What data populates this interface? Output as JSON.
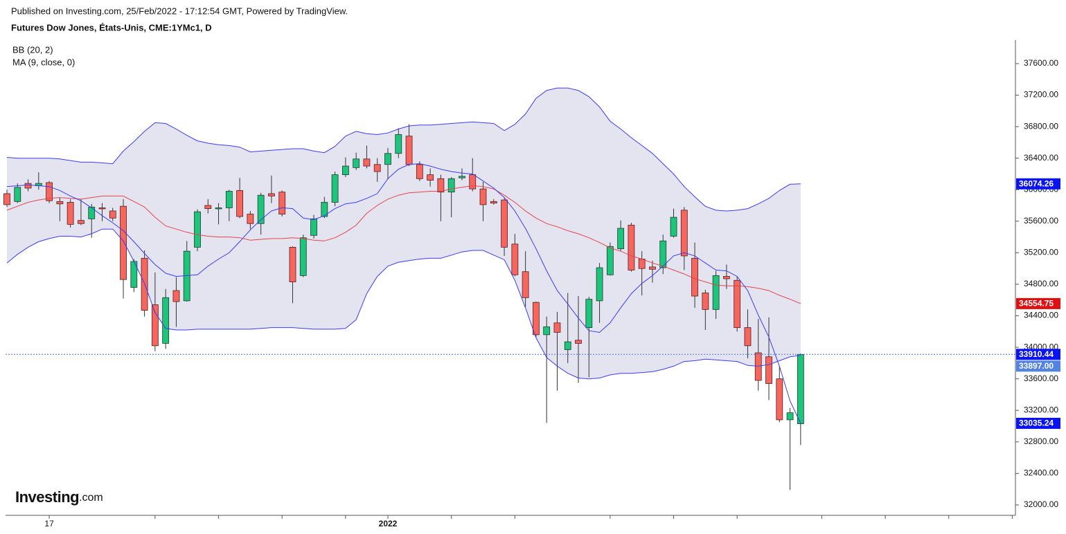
{
  "header": {
    "published": "Published on Investing.com, 25/Feb/2022 - 17:12:54 GMT, Powered by TradingView."
  },
  "logo": {
    "name": "Investing",
    "suffix": ".com"
  },
  "chart_data": {
    "type": "candlestick",
    "title": "Futures Dow Jones, États-Unis, CME:1YMc1, D",
    "legend": [
      "BB (20, 2)",
      "MA (9, close, 0)"
    ],
    "xlim": [
      -0.13,
      95.3
    ],
    "xticks": [
      {
        "value": 4,
        "label": "17"
      },
      {
        "value": 14,
        "label": null
      },
      {
        "value": 20,
        "label": null
      },
      {
        "value": 26,
        "label": null
      },
      {
        "value": 32,
        "label": null
      },
      {
        "value": 36,
        "label": "2022"
      },
      {
        "value": 42,
        "label": null
      },
      {
        "value": 48,
        "label": null
      },
      {
        "value": 57,
        "label": null
      },
      {
        "value": 63,
        "label": null
      },
      {
        "value": 69,
        "label": null
      },
      {
        "value": 77,
        "label": null
      },
      {
        "value": 83,
        "label": null
      },
      {
        "value": 89,
        "label": null
      },
      {
        "value": 95,
        "label": null
      }
    ],
    "ylim": [
      31868,
      37898
    ],
    "yticks": [
      {
        "value": 32000,
        "label": "32000.00"
      },
      {
        "value": 32400,
        "label": "32400.00"
      },
      {
        "value": 32800,
        "label": "32800.00"
      },
      {
        "value": 33200,
        "label": "33200.00"
      },
      {
        "value": 33600,
        "label": "33600.00"
      },
      {
        "value": 34000,
        "label": "34000.00"
      },
      {
        "value": 34400,
        "label": "34400.00"
      },
      {
        "value": 34800,
        "label": "34800.00"
      },
      {
        "value": 35200,
        "label": "35200.00"
      },
      {
        "value": 35600,
        "label": "35600.00"
      },
      {
        "value": 36000,
        "label": "36000.00"
      },
      {
        "value": 36400,
        "label": "36400.00"
      },
      {
        "value": 36800,
        "label": "36800.00"
      },
      {
        "value": 37200,
        "label": "37200.00"
      },
      {
        "value": 37600,
        "label": "37600.00"
      }
    ],
    "up_color": "#1fc47c",
    "down_color": "#f4665e",
    "band_fill": "#e4e4f1",
    "price_line_color": "#4a6fe0",
    "close_tag_color": "#0a14f0",
    "candles": {
      "open": [
        35950,
        35850,
        36080,
        36050,
        36090,
        35850,
        35840,
        35610,
        35630,
        35770,
        35730,
        35790,
        34760,
        35130,
        34540,
        34050,
        34720,
        34590,
        35270,
        35800,
        35760,
        35770,
        35990,
        35690,
        35570,
        35950,
        35970,
        35270,
        34910,
        35420,
        35660,
        35840,
        36190,
        36280,
        36390,
        36320,
        36320,
        36460,
        36680,
        36320,
        36190,
        36140,
        35970,
        36150,
        36190,
        36010,
        35850,
        35870,
        35310,
        34960,
        34570,
        34160,
        34310,
        33970,
        34090,
        34250,
        34590,
        34920,
        35250,
        35550,
        35120,
        35020,
        35010,
        35410,
        35740,
        35130,
        34690,
        34480,
        34900,
        34850,
        34250,
        33930,
        33880,
        33600,
        33080,
        33030
      ],
      "high": [
        36000,
        36080,
        36130,
        36220,
        36110,
        35900,
        35880,
        35880,
        35820,
        35830,
        35770,
        35880,
        35120,
        35230,
        34950,
        34740,
        34890,
        35350,
        35750,
        35880,
        35830,
        36000,
        36150,
        35730,
        35960,
        36180,
        35990,
        35280,
        35430,
        35680,
        35910,
        36230,
        36410,
        36470,
        36560,
        36400,
        36530,
        36780,
        36830,
        36360,
        36270,
        36190,
        36160,
        36270,
        36400,
        36100,
        35880,
        35890,
        35440,
        35220,
        34580,
        34390,
        34450,
        34690,
        34650,
        34640,
        35070,
        35330,
        35610,
        35580,
        35220,
        35100,
        35430,
        35760,
        35780,
        35330,
        34730,
        34970,
        35050,
        34900,
        34480,
        34360,
        34380,
        33760,
        33230,
        33920
      ],
      "low": [
        35780,
        35830,
        35980,
        36000,
        35830,
        35600,
        35520,
        35550,
        35390,
        35600,
        35600,
        34620,
        34700,
        34390,
        33950,
        33980,
        34260,
        34580,
        35220,
        35700,
        35560,
        35600,
        35640,
        35500,
        35430,
        35830,
        35660,
        34560,
        34890,
        35380,
        35640,
        35790,
        36160,
        36250,
        36270,
        36100,
        36130,
        36400,
        36300,
        36110,
        36040,
        35600,
        35650,
        36120,
        35980,
        35600,
        35810,
        35160,
        34900,
        34510,
        34130,
        33040,
        33450,
        33800,
        33550,
        33620,
        34310,
        34910,
        35220,
        34960,
        34660,
        34820,
        34930,
        35390,
        34980,
        34500,
        34220,
        34360,
        34740,
        34200,
        33860,
        33450,
        33330,
        33050,
        32190,
        32760
      ],
      "close": [
        35810,
        36030,
        36020,
        36080,
        35860,
        35820,
        35560,
        35570,
        35780,
        35760,
        35640,
        34860,
        35090,
        34470,
        34020,
        34630,
        34580,
        35220,
        35720,
        35760,
        35770,
        35980,
        35660,
        35570,
        35930,
        35920,
        35690,
        34830,
        35390,
        35630,
        35840,
        36190,
        36300,
        36390,
        36300,
        36230,
        36460,
        36700,
        36320,
        36140,
        36120,
        35970,
        36140,
        36170,
        36010,
        35810,
        35830,
        35270,
        34920,
        34630,
        34160,
        34260,
        34190,
        34070,
        34050,
        34610,
        35010,
        35280,
        35510,
        34980,
        35000,
        34990,
        35350,
        35650,
        35160,
        34650,
        34480,
        34910,
        34870,
        34250,
        34020,
        33580,
        33540,
        33080,
        33170,
        33910.44
      ]
    },
    "series": [
      {
        "color": "#3b3bf5",
        "tag_color": "#0a14f0",
        "values": [
          36410,
          36400,
          36400,
          36400,
          36400,
          36390,
          36370,
          36350,
          36350,
          36340,
          36330,
          36490,
          36610,
          36740,
          36850,
          36840,
          36770,
          36690,
          36620,
          36590,
          36570,
          36560,
          36540,
          36480,
          36490,
          36500,
          36510,
          36520,
          36520,
          36490,
          36470,
          36550,
          36680,
          36740,
          36710,
          36700,
          36720,
          36770,
          36810,
          36820,
          36820,
          36830,
          36840,
          36850,
          36860,
          36850,
          36840,
          36750,
          36830,
          36960,
          37160,
          37260,
          37290,
          37290,
          37260,
          37180,
          37050,
          36870,
          36770,
          36660,
          36560,
          36460,
          36330,
          36200,
          36040,
          35910,
          35790,
          35740,
          35730,
          35740,
          35760,
          35820,
          35890,
          35990,
          36070,
          36074.26
        ]
      },
      {
        "color": "#e8434a",
        "tag_color": "#e01010",
        "values": [
          35740,
          35790,
          35840,
          35870,
          35890,
          35900,
          35890,
          35880,
          35900,
          35920,
          35920,
          35920,
          35850,
          35780,
          35650,
          35540,
          35500,
          35460,
          35430,
          35410,
          35400,
          35400,
          35390,
          35360,
          35370,
          35380,
          35380,
          35390,
          35380,
          35360,
          35350,
          35390,
          35460,
          35550,
          35700,
          35800,
          35880,
          35930,
          35960,
          35970,
          35980,
          35980,
          36010,
          36030,
          36050,
          36040,
          36010,
          35930,
          35840,
          35730,
          35640,
          35570,
          35530,
          35480,
          35440,
          35390,
          35330,
          35260,
          35220,
          35160,
          35120,
          35070,
          35030,
          34980,
          34930,
          34870,
          34830,
          34790,
          34780,
          34780,
          34770,
          34750,
          34720,
          34660,
          34610,
          34554.75
        ]
      },
      {
        "color": "#3b3bf5",
        "tag_color": "#5383e0",
        "values": [
          35070,
          35180,
          35270,
          35340,
          35380,
          35410,
          35410,
          35400,
          35440,
          35500,
          35500,
          35350,
          35090,
          34810,
          34440,
          34240,
          34220,
          34220,
          34230,
          34230,
          34230,
          34230,
          34230,
          34230,
          34240,
          34250,
          34250,
          34250,
          34240,
          34230,
          34230,
          34230,
          34240,
          34350,
          34680,
          34900,
          35030,
          35080,
          35100,
          35120,
          35130,
          35130,
          35170,
          35210,
          35230,
          35230,
          35170,
          35110,
          34850,
          34500,
          34120,
          33870,
          33760,
          33670,
          33610,
          33600,
          33610,
          33650,
          33670,
          33670,
          33680,
          33690,
          33720,
          33760,
          33820,
          33830,
          33850,
          33840,
          33830,
          33820,
          33770,
          33760,
          33780,
          33830,
          33880,
          33897
        ],
        "value_labels": [
          null,
          null,
          null,
          null,
          null,
          null,
          null,
          null,
          null,
          null,
          null,
          null,
          null,
          null,
          null,
          null,
          null,
          null,
          null,
          null,
          null,
          null,
          null,
          null,
          null,
          null,
          null,
          null,
          null,
          null,
          null,
          null,
          null,
          null,
          null,
          null,
          null,
          null,
          null,
          null,
          null,
          null,
          null,
          null,
          null,
          null,
          null,
          null,
          null,
          null,
          null,
          null,
          null,
          null,
          null,
          null,
          null,
          null,
          null,
          null,
          null,
          null,
          null,
          null,
          null,
          null,
          null,
          null,
          null,
          null,
          null,
          null,
          null,
          null,
          null,
          "33897.00"
        ]
      },
      {
        "color": "#3b3bf5",
        "tag_color": "#0a14f0",
        "values": [
          36040,
          36050,
          36060,
          36050,
          36040,
          35990,
          35920,
          35860,
          35770,
          35670,
          35580,
          35480,
          35340,
          35190,
          35050,
          34940,
          34900,
          34910,
          34920,
          35030,
          35120,
          35200,
          35340,
          35490,
          35620,
          35730,
          35770,
          35760,
          35640,
          35620,
          35670,
          35760,
          35820,
          35840,
          35890,
          35950,
          36140,
          36260,
          36320,
          36330,
          36300,
          36260,
          36230,
          36210,
          36200,
          36110,
          36020,
          35900,
          35730,
          35510,
          35250,
          34970,
          34720,
          34550,
          34370,
          34210,
          34190,
          34310,
          34500,
          34680,
          34810,
          34910,
          35030,
          35160,
          35200,
          35160,
          35070,
          34980,
          34970,
          34900,
          34720,
          34410,
          34130,
          33760,
          33320,
          33035.24
        ]
      }
    ]
  }
}
